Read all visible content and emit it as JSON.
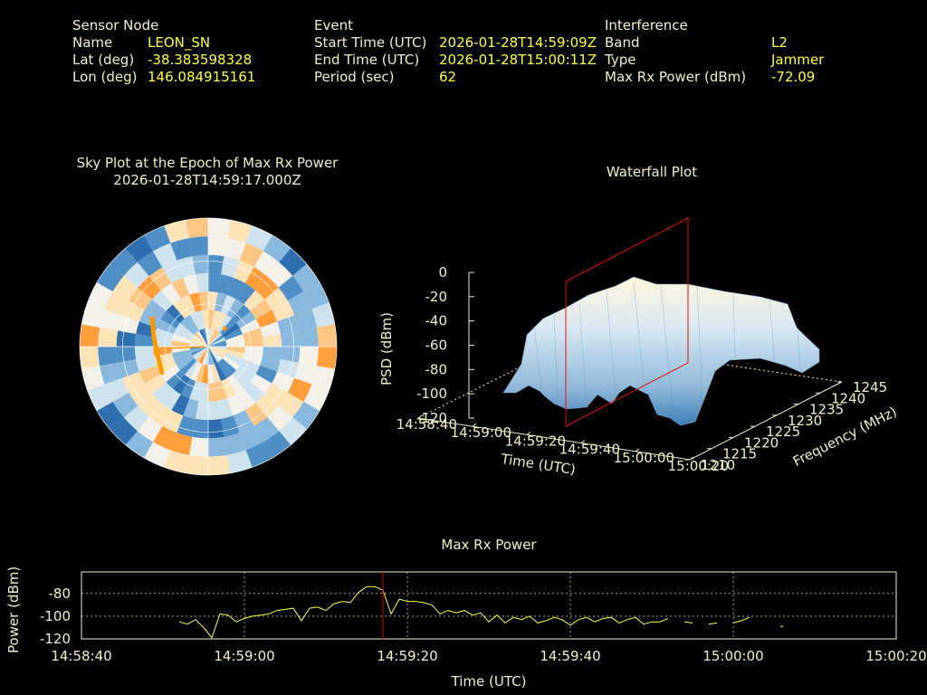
{
  "header": {
    "sensor": {
      "title": "Sensor Node",
      "name_label": "Name",
      "name": "LEON_SN",
      "lat_label": "Lat (deg)",
      "lat": "-38.383598328",
      "lon_label": "Lon (deg)",
      "lon": "146.084915161"
    },
    "event": {
      "title": "Event",
      "start_label": "Start Time (UTC)",
      "start": "2026-01-28T14:59:09Z",
      "end_label": "End Time (UTC)",
      "end": "2026-01-28T15:00:11Z",
      "period_label": "Period (sec)",
      "period": "62"
    },
    "interference": {
      "title": "Interference",
      "band_label": "Band",
      "band": "L2",
      "type_label": "Type",
      "type": "Jammer",
      "max_label": "Max Rx Power (dBm)",
      "max": "-72.09"
    }
  },
  "colors": {
    "background": "#000000",
    "text": "#f2efc6",
    "value": "#ffff3a",
    "line": "#ffff3a",
    "marker": "#cc0000",
    "sky_low": "#2f6fb0",
    "sky_high": "#ff9e3a",
    "sat_track": "#ff9900"
  },
  "chart_data": [
    {
      "type": "heatmap",
      "subtype": "polar-sky-plot",
      "title": "Sky Plot at the Epoch of Max Rx Power",
      "subtitle": "2026-01-28T14:59:17.000Z",
      "grid": true
    },
    {
      "type": "surface",
      "title": "Waterfall Plot",
      "xlabel": "Time (UTC)",
      "ylabel": "Frequency (MHz)",
      "zlabel": "PSD (dBm)",
      "x_ticks": [
        "14:58:40",
        "14:59:00",
        "14:59:20",
        "14:59:40",
        "15:00:00",
        "15:00:20"
      ],
      "y_ticks": [
        "1210",
        "1215",
        "1220",
        "1225",
        "1230",
        "1235",
        "1240",
        "1245"
      ],
      "z_ticks": [
        "0",
        "-20",
        "-40",
        "-60",
        "-80",
        "-100",
        "-120"
      ],
      "zlim": [
        -120,
        0
      ],
      "freq_range_mhz": [
        1210,
        1245
      ],
      "marker_time": "14:59:17"
    },
    {
      "type": "line",
      "title": "Max Rx Power",
      "xlabel": "Time (UTC)",
      "ylabel": "Power (dBm)",
      "x_ticks": [
        "14:58:40",
        "14:59:00",
        "14:59:20",
        "14:59:40",
        "15:00:00",
        "15:00:20"
      ],
      "y_ticks": [
        "-80",
        "-100",
        "-120"
      ],
      "ylim": [
        -120,
        -61
      ],
      "grid": true,
      "marker_time": "14:59:17",
      "segments": [
        [
          [
            12,
            -105
          ],
          [
            13,
            -107
          ],
          [
            14,
            -103
          ],
          [
            15,
            -110
          ],
          [
            16,
            -119
          ],
          [
            17,
            -98
          ],
          [
            18,
            -99
          ],
          [
            19,
            -105
          ],
          [
            20,
            -102
          ],
          [
            21,
            -100
          ],
          [
            22,
            -99
          ],
          [
            23,
            -98
          ],
          [
            24,
            -95
          ],
          [
            25,
            -94
          ],
          [
            26,
            -93
          ],
          [
            27,
            -104
          ],
          [
            28,
            -93
          ],
          [
            29,
            -92
          ],
          [
            30,
            -95
          ],
          [
            31,
            -89
          ],
          [
            32,
            -87
          ],
          [
            33,
            -88
          ],
          [
            34,
            -79
          ],
          [
            35,
            -74
          ],
          [
            36,
            -74
          ],
          [
            37,
            -77
          ],
          [
            38,
            -98
          ],
          [
            39,
            -85
          ],
          [
            40,
            -87
          ],
          [
            41,
            -87
          ],
          [
            42,
            -88
          ],
          [
            43,
            -90
          ],
          [
            44,
            -98
          ],
          [
            45,
            -95
          ],
          [
            46,
            -97
          ],
          [
            47,
            -95
          ],
          [
            48,
            -99
          ],
          [
            49,
            -97
          ],
          [
            50,
            -105
          ],
          [
            51,
            -99
          ],
          [
            52,
            -106
          ],
          [
            53,
            -101
          ],
          [
            54,
            -103
          ],
          [
            55,
            -100
          ],
          [
            56,
            -106
          ],
          [
            57,
            -104
          ],
          [
            58,
            -101
          ],
          [
            59,
            -103
          ],
          [
            60,
            -108
          ],
          [
            61,
            -103
          ],
          [
            62,
            -101
          ],
          [
            63,
            -105
          ],
          [
            64,
            -102
          ],
          [
            65,
            -101
          ],
          [
            66,
            -106
          ],
          [
            67,
            -103
          ],
          [
            68,
            -101
          ],
          [
            69,
            -107
          ],
          [
            70,
            -105
          ],
          [
            71,
            -105
          ],
          [
            72,
            -102
          ]
        ],
        [
          [
            74,
            -105
          ],
          [
            75,
            -106
          ]
        ],
        [
          [
            77,
            -107
          ],
          [
            78,
            -106
          ]
        ],
        [
          [
            80,
            -106
          ],
          [
            81,
            -104
          ],
          [
            82,
            -101
          ]
        ],
        [
          [
            86,
            -109
          ]
        ]
      ]
    }
  ]
}
